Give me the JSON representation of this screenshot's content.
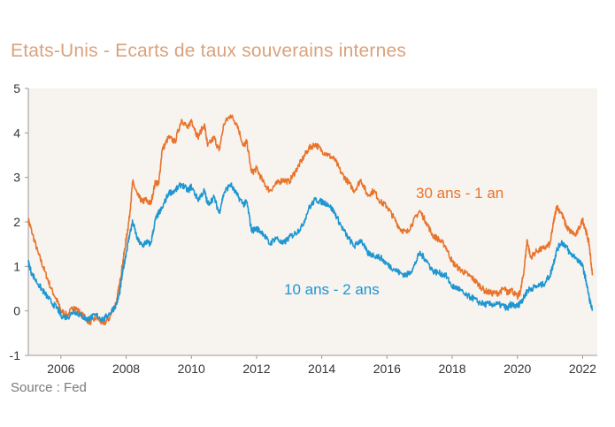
{
  "title": "Etats-Unis - Ecarts de taux souverains internes",
  "source": "Source : Fed",
  "chart_data": {
    "type": "line",
    "xlim": [
      2005.0,
      2022.45
    ],
    "ylim": [
      -1,
      5
    ],
    "x_ticks": [
      2006,
      2008,
      2010,
      2012,
      2014,
      2016,
      2018,
      2020,
      2022
    ],
    "y_ticks": [
      5,
      4,
      3,
      2,
      1,
      0,
      -1
    ],
    "grid": false,
    "colors": {
      "plot_bg": "#f7f3ef",
      "orange": "#e8742c",
      "blue": "#1e96d1",
      "title": "#d9a27c"
    },
    "series": [
      {
        "name": "30 ans - 1 an",
        "color": "#e8742c",
        "x": [
          2005.0,
          2005.1,
          2005.3,
          2005.5,
          2005.7,
          2005.9,
          2006.0,
          2006.2,
          2006.4,
          2006.6,
          2006.8,
          2006.9,
          2007.1,
          2007.3,
          2007.5,
          2007.7,
          2007.8,
          2007.9,
          2008.0,
          2008.1,
          2008.2,
          2008.35,
          2008.5,
          2008.6,
          2008.75,
          2008.9,
          2009.0,
          2009.1,
          2009.3,
          2009.5,
          2009.7,
          2009.9,
          2010.0,
          2010.2,
          2010.4,
          2010.5,
          2010.7,
          2010.85,
          2011.0,
          2011.2,
          2011.4,
          2011.6,
          2011.7,
          2011.85,
          2012.0,
          2012.2,
          2012.4,
          2012.6,
          2012.8,
          2013.0,
          2013.2,
          2013.4,
          2013.6,
          2013.8,
          2014.0,
          2014.2,
          2014.4,
          2014.6,
          2014.8,
          2015.0,
          2015.2,
          2015.4,
          2015.6,
          2015.8,
          2016.0,
          2016.2,
          2016.4,
          2016.6,
          2016.8,
          2017.0,
          2017.2,
          2017.4,
          2017.6,
          2017.8,
          2018.0,
          2018.2,
          2018.4,
          2018.6,
          2018.8,
          2019.0,
          2019.2,
          2019.4,
          2019.6,
          2019.7,
          2019.8,
          2020.0,
          2020.1,
          2020.2,
          2020.3,
          2020.4,
          2020.6,
          2020.8,
          2021.0,
          2021.1,
          2021.2,
          2021.35,
          2021.5,
          2021.6,
          2021.8,
          2022.0,
          2022.1,
          2022.2,
          2022.3
        ],
        "values": [
          2.05,
          1.8,
          1.3,
          0.9,
          0.5,
          0.2,
          0.0,
          -0.1,
          0.1,
          -0.05,
          -0.2,
          -0.25,
          -0.15,
          -0.3,
          -0.15,
          0.2,
          0.6,
          1.1,
          1.6,
          2.1,
          2.9,
          2.6,
          2.45,
          2.5,
          2.4,
          2.9,
          2.85,
          3.6,
          3.9,
          3.8,
          4.3,
          4.1,
          4.3,
          3.9,
          4.2,
          3.7,
          3.9,
          3.6,
          4.2,
          4.4,
          4.2,
          3.7,
          3.8,
          3.1,
          3.2,
          2.9,
          2.7,
          2.85,
          2.95,
          2.9,
          3.15,
          3.4,
          3.65,
          3.75,
          3.6,
          3.5,
          3.4,
          3.1,
          2.9,
          2.7,
          2.95,
          2.6,
          2.7,
          2.45,
          2.35,
          2.1,
          1.85,
          1.75,
          2.0,
          2.25,
          2.0,
          1.7,
          1.6,
          1.45,
          1.1,
          0.95,
          0.85,
          0.75,
          0.6,
          0.45,
          0.4,
          0.4,
          0.5,
          0.4,
          0.5,
          0.3,
          0.45,
          0.9,
          1.6,
          1.2,
          1.35,
          1.4,
          1.5,
          1.95,
          2.35,
          2.2,
          1.9,
          1.8,
          1.7,
          2.05,
          1.8,
          1.5,
          0.8
        ]
      },
      {
        "name": "10 ans - 2 ans",
        "color": "#1e96d1",
        "x": [
          2005.0,
          2005.1,
          2005.3,
          2005.5,
          2005.7,
          2005.9,
          2006.0,
          2006.2,
          2006.4,
          2006.6,
          2006.8,
          2006.9,
          2007.1,
          2007.3,
          2007.5,
          2007.7,
          2007.8,
          2007.9,
          2008.0,
          2008.1,
          2008.2,
          2008.35,
          2008.5,
          2008.6,
          2008.75,
          2008.9,
          2009.0,
          2009.1,
          2009.3,
          2009.5,
          2009.7,
          2009.9,
          2010.0,
          2010.2,
          2010.4,
          2010.5,
          2010.7,
          2010.85,
          2011.0,
          2011.2,
          2011.4,
          2011.6,
          2011.7,
          2011.85,
          2012.0,
          2012.2,
          2012.4,
          2012.6,
          2012.8,
          2013.0,
          2013.2,
          2013.4,
          2013.6,
          2013.8,
          2014.0,
          2014.2,
          2014.4,
          2014.6,
          2014.8,
          2015.0,
          2015.2,
          2015.4,
          2015.6,
          2015.8,
          2016.0,
          2016.2,
          2016.4,
          2016.6,
          2016.8,
          2017.0,
          2017.2,
          2017.4,
          2017.6,
          2017.8,
          2018.0,
          2018.2,
          2018.4,
          2018.6,
          2018.8,
          2019.0,
          2019.2,
          2019.4,
          2019.6,
          2019.7,
          2019.8,
          2020.0,
          2020.1,
          2020.2,
          2020.3,
          2020.4,
          2020.6,
          2020.8,
          2021.0,
          2021.1,
          2021.2,
          2021.35,
          2021.5,
          2021.6,
          2021.8,
          2022.0,
          2022.1,
          2022.2,
          2022.3
        ],
        "values": [
          1.1,
          0.85,
          0.6,
          0.4,
          0.2,
          0.05,
          -0.1,
          -0.15,
          0.0,
          -0.1,
          -0.2,
          -0.15,
          -0.1,
          -0.2,
          -0.05,
          0.15,
          0.4,
          0.9,
          1.3,
          1.7,
          2.0,
          1.6,
          1.45,
          1.55,
          1.5,
          2.05,
          2.2,
          2.3,
          2.65,
          2.7,
          2.85,
          2.7,
          2.8,
          2.5,
          2.7,
          2.4,
          2.55,
          2.2,
          2.65,
          2.85,
          2.6,
          2.4,
          2.45,
          1.8,
          1.85,
          1.75,
          1.5,
          1.65,
          1.5,
          1.65,
          1.75,
          1.9,
          2.3,
          2.5,
          2.45,
          2.4,
          2.2,
          1.9,
          1.65,
          1.45,
          1.6,
          1.3,
          1.25,
          1.2,
          1.05,
          0.95,
          0.85,
          0.8,
          0.95,
          1.3,
          1.15,
          0.9,
          0.85,
          0.8,
          0.55,
          0.5,
          0.35,
          0.3,
          0.2,
          0.15,
          0.15,
          0.15,
          0.1,
          0.05,
          0.15,
          0.1,
          0.2,
          0.3,
          0.45,
          0.5,
          0.55,
          0.6,
          0.8,
          1.05,
          1.35,
          1.55,
          1.45,
          1.3,
          1.2,
          1.0,
          0.7,
          0.3,
          0.0
        ]
      }
    ]
  }
}
